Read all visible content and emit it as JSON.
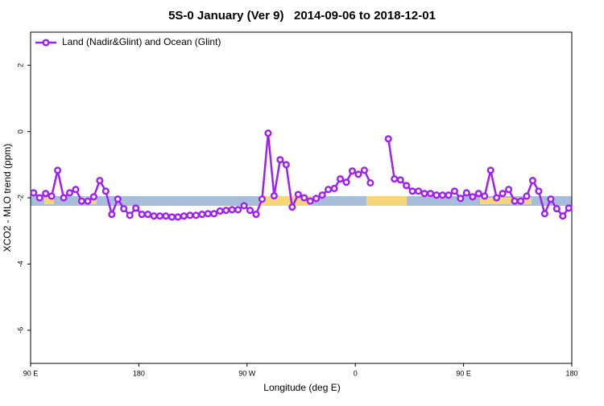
{
  "chart_data": {
    "type": "line",
    "title": "5S-0 January (Ver 9)   2014-09-06 to 2018-12-01",
    "xlabel": "Longitude (deg E)",
    "ylabel": "XCO2 - MLO trend (ppm)",
    "xlim": [
      90,
      540
    ],
    "ylim": [
      -7,
      3
    ],
    "xticks": [
      {
        "value": 90,
        "label": "90 E"
      },
      180,
      {
        "value": 270,
        "label": "90 W"
      },
      {
        "value": 360,
        "label": "0"
      },
      {
        "value": 450,
        "label": "90 E"
      },
      {
        "value": 540,
        "label": "180"
      }
    ],
    "yticks": [
      -6,
      -4,
      -2,
      0,
      2
    ],
    "legend_position": "top-left",
    "x": [
      92.5,
      97.5,
      102.5,
      107.5,
      112.5,
      117.5,
      122.5,
      127.5,
      132.5,
      137.5,
      142.5,
      147.5,
      152.5,
      157.5,
      162.5,
      167.5,
      172.5,
      177.5,
      182.5,
      187.5,
      192.5,
      197.5,
      202.5,
      207.5,
      212.5,
      217.5,
      222.5,
      227.5,
      232.5,
      237.5,
      242.5,
      247.5,
      252.5,
      257.5,
      262.5,
      267.5,
      272.5,
      277.5,
      282.5,
      287.5,
      292.5,
      297.5,
      302.5,
      307.5,
      312.5,
      317.5,
      322.5,
      327.5,
      332.5,
      337.5,
      342.5,
      347.5,
      352.5,
      357.5,
      362.5,
      367.5,
      372.5,
      377.5,
      382.5,
      387.5,
      392.5,
      397.5,
      402.5,
      407.5,
      412.5,
      417.5,
      422.5,
      427.5,
      432.5,
      437.5,
      442.5,
      447.5,
      452.5,
      457.5,
      462.5,
      467.5,
      472.5,
      477.5,
      482.5,
      487.5,
      492.5,
      497.5,
      502.5,
      507.5,
      512.5,
      517.5,
      522.5,
      527.5,
      532.5,
      537.5
    ],
    "series": [
      {
        "name": "Land (Nadir&Glint) and Ocean (Glint)",
        "color": "#a020f0",
        "values": [
          -1.85,
          -2.0,
          -1.87,
          -1.95,
          -1.17,
          -2.0,
          -1.85,
          -1.75,
          -2.1,
          -2.1,
          -1.97,
          -1.48,
          -1.8,
          -2.5,
          -2.04,
          -2.33,
          -2.53,
          -2.31,
          -2.5,
          -2.5,
          -2.55,
          -2.55,
          -2.55,
          -2.58,
          -2.58,
          -2.55,
          -2.53,
          -2.53,
          -2.5,
          -2.48,
          -2.48,
          -2.4,
          -2.38,
          -2.36,
          -2.36,
          -2.24,
          -2.38,
          -2.5,
          -2.04,
          -0.05,
          -1.94,
          -0.85,
          -1.0,
          -2.28,
          -1.9,
          -2.0,
          -2.1,
          -2.02,
          -1.92,
          -1.75,
          -1.72,
          -1.43,
          -1.53,
          -1.19,
          -1.29,
          -1.17,
          -1.55,
          null,
          null,
          -0.22,
          -1.43,
          -1.46,
          -1.63,
          -1.8,
          -1.8,
          -1.87,
          -1.87,
          -1.92,
          -1.92,
          -1.92,
          -1.8,
          -2.02,
          -1.85,
          -1.97,
          -1.87,
          -1.95,
          -1.17,
          -2.0,
          -1.87,
          -1.75,
          -2.1,
          -2.1,
          -1.95,
          -1.48,
          -1.8,
          -2.48,
          -2.04,
          -2.33,
          -2.55,
          -2.31
        ]
      }
    ]
  }
}
